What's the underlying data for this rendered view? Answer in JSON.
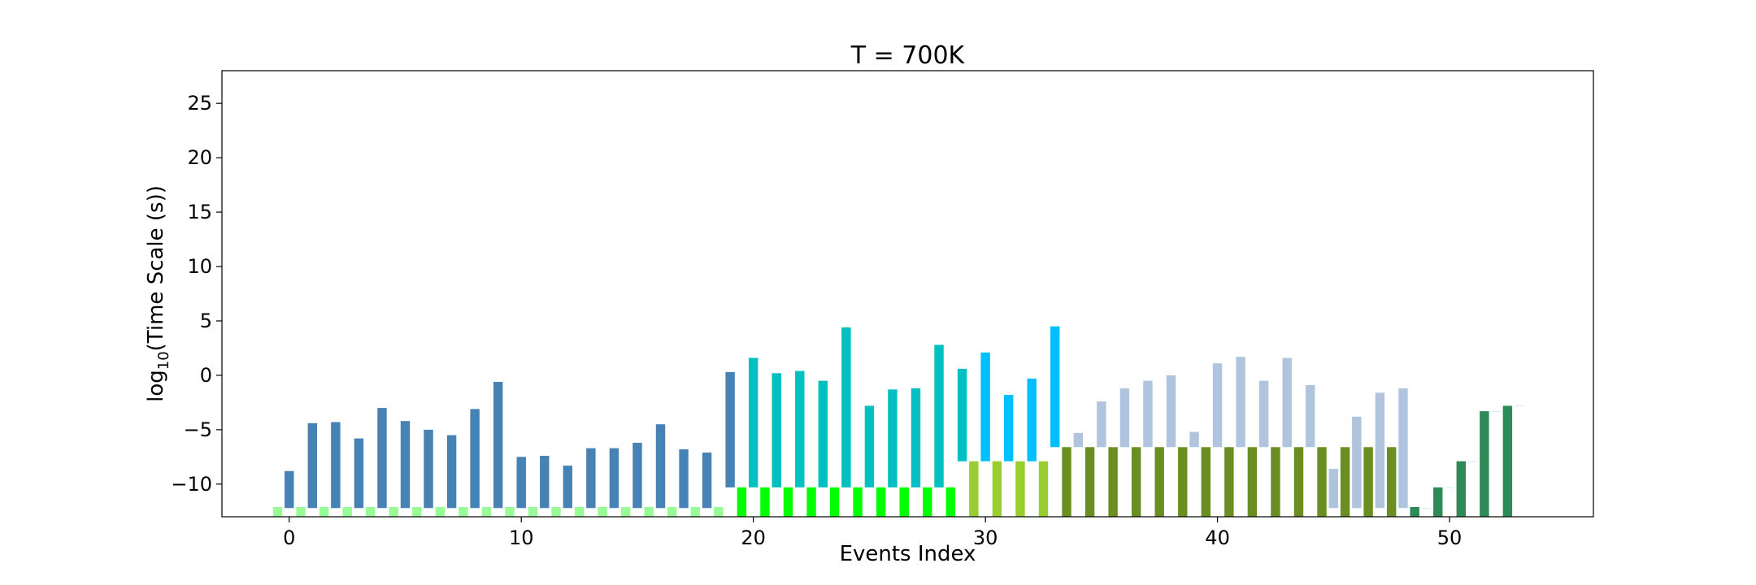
{
  "chart_data": {
    "type": "bar",
    "title": "T = 700K",
    "xlabel": "Events Index",
    "ylabel_main": "log",
    "ylabel_sub": "10",
    "ylabel_rest": "(Time Scale (s))",
    "xlim": [
      -2.9,
      56.2
    ],
    "ylim": [
      -13,
      28
    ],
    "xticks": [
      0,
      10,
      20,
      30,
      40,
      50
    ],
    "yticks": [
      -10,
      -5,
      0,
      5,
      10,
      15,
      20,
      25
    ],
    "grid": false,
    "bar_width": 0.4,
    "bars": [
      {
        "x": 0,
        "lo": -12.2,
        "hi": -8.8,
        "color": "#4682b4"
      },
      {
        "x": 1,
        "lo": -12.2,
        "hi": -4.4,
        "color": "#4682b4"
      },
      {
        "x": 2,
        "lo": -12.2,
        "hi": -4.3,
        "color": "#4682b4"
      },
      {
        "x": 3,
        "lo": -12.2,
        "hi": -5.8,
        "color": "#4682b4"
      },
      {
        "x": 4,
        "lo": -12.2,
        "hi": -3.0,
        "color": "#4682b4"
      },
      {
        "x": 5,
        "lo": -12.2,
        "hi": -4.2,
        "color": "#4682b4"
      },
      {
        "x": 6,
        "lo": -12.2,
        "hi": -5.0,
        "color": "#4682b4"
      },
      {
        "x": 7,
        "lo": -12.2,
        "hi": -5.5,
        "color": "#4682b4"
      },
      {
        "x": 8,
        "lo": -12.2,
        "hi": -3.1,
        "color": "#4682b4"
      },
      {
        "x": 9,
        "lo": -12.2,
        "hi": -0.6,
        "color": "#4682b4"
      },
      {
        "x": 10,
        "lo": -12.2,
        "hi": -7.5,
        "color": "#4682b4"
      },
      {
        "x": 11,
        "lo": -12.2,
        "hi": -7.4,
        "color": "#4682b4"
      },
      {
        "x": 12,
        "lo": -12.2,
        "hi": -8.3,
        "color": "#4682b4"
      },
      {
        "x": 13,
        "lo": -12.2,
        "hi": -6.7,
        "color": "#4682b4"
      },
      {
        "x": 14,
        "lo": -12.2,
        "hi": -6.7,
        "color": "#4682b4"
      },
      {
        "x": 15,
        "lo": -12.2,
        "hi": -6.2,
        "color": "#4682b4"
      },
      {
        "x": 16,
        "lo": -12.2,
        "hi": -4.5,
        "color": "#4682b4"
      },
      {
        "x": 17,
        "lo": -12.2,
        "hi": -6.8,
        "color": "#4682b4"
      },
      {
        "x": 18,
        "lo": -12.2,
        "hi": -7.1,
        "color": "#4682b4"
      },
      {
        "x": 19,
        "lo": -10.3,
        "hi": 0.3,
        "color": "#4682b4"
      },
      {
        "x": 20,
        "lo": -10.3,
        "hi": 1.6,
        "color": "#00c0c0"
      },
      {
        "x": 21,
        "lo": -10.3,
        "hi": 0.2,
        "color": "#00c0c0"
      },
      {
        "x": 22,
        "lo": -10.3,
        "hi": 0.4,
        "color": "#00c0c0"
      },
      {
        "x": 23,
        "lo": -10.3,
        "hi": -0.5,
        "color": "#00c0c0"
      },
      {
        "x": 24,
        "lo": -10.3,
        "hi": 4.4,
        "color": "#00c0c0"
      },
      {
        "x": 25,
        "lo": -10.3,
        "hi": -2.8,
        "color": "#00c0c0"
      },
      {
        "x": 26,
        "lo": -10.3,
        "hi": -1.3,
        "color": "#00c0c0"
      },
      {
        "x": 27,
        "lo": -10.3,
        "hi": -1.2,
        "color": "#00c0c0"
      },
      {
        "x": 28,
        "lo": -10.3,
        "hi": 2.8,
        "color": "#00c0c0"
      },
      {
        "x": 29,
        "lo": -7.9,
        "hi": 0.6,
        "color": "#00c0c0"
      },
      {
        "x": 30,
        "lo": -7.9,
        "hi": 2.1,
        "color": "#00bfff"
      },
      {
        "x": 31,
        "lo": -7.9,
        "hi": -1.8,
        "color": "#00bfff"
      },
      {
        "x": 32,
        "lo": -7.9,
        "hi": -0.3,
        "color": "#00bfff"
      },
      {
        "x": 33,
        "lo": -6.6,
        "hi": 4.5,
        "color": "#00bfff"
      },
      {
        "x": 34,
        "lo": -6.6,
        "hi": -5.3,
        "color": "#b0c4de"
      },
      {
        "x": 35,
        "lo": -6.6,
        "hi": -2.4,
        "color": "#b0c4de"
      },
      {
        "x": 36,
        "lo": -6.6,
        "hi": -1.2,
        "color": "#b0c4de"
      },
      {
        "x": 37,
        "lo": -6.6,
        "hi": -0.5,
        "color": "#b0c4de"
      },
      {
        "x": 38,
        "lo": -6.6,
        "hi": 0.0,
        "color": "#b0c4de"
      },
      {
        "x": 39,
        "lo": -6.6,
        "hi": -5.2,
        "color": "#b0c4de"
      },
      {
        "x": 40,
        "lo": -6.6,
        "hi": 1.1,
        "color": "#b0c4de"
      },
      {
        "x": 41,
        "lo": -6.6,
        "hi": 1.7,
        "color": "#b0c4de"
      },
      {
        "x": 42,
        "lo": -6.6,
        "hi": -0.5,
        "color": "#b0c4de"
      },
      {
        "x": 43,
        "lo": -6.6,
        "hi": 1.6,
        "color": "#b0c4de"
      },
      {
        "x": 44,
        "lo": -6.6,
        "hi": -0.9,
        "color": "#b0c4de"
      },
      {
        "x": 45,
        "lo": -12.2,
        "hi": -8.6,
        "color": "#b0c4de"
      },
      {
        "x": 46,
        "lo": -12.2,
        "hi": -3.8,
        "color": "#b0c4de"
      },
      {
        "x": 47,
        "lo": -12.2,
        "hi": -1.6,
        "color": "#b0c4de"
      },
      {
        "x": 48,
        "lo": -12.2,
        "hi": -1.2,
        "color": "#b0c4de"
      },
      {
        "x": 49,
        "lo": -12.2,
        "hi": -12.2,
        "color": "#b0e0e6"
      },
      {
        "x": 50,
        "lo": -10.3,
        "hi": -10.3,
        "color": "#b0e0e6"
      },
      {
        "x": 51,
        "lo": -7.9,
        "hi": -7.9,
        "color": "#b0e0e6"
      },
      {
        "x": 52,
        "lo": -3.3,
        "hi": -3.3,
        "color": "#b0e0e6"
      },
      {
        "x": 53,
        "lo": -2.8,
        "hi": -2.8,
        "color": "#b0e0e6"
      },
      {
        "x": -0.5,
        "lo": -13,
        "hi": -12.1,
        "color": "#98fb98"
      },
      {
        "x": 0.5,
        "lo": -13,
        "hi": -12.1,
        "color": "#98fb98"
      },
      {
        "x": 1.5,
        "lo": -13,
        "hi": -12.1,
        "color": "#98fb98"
      },
      {
        "x": 2.5,
        "lo": -13,
        "hi": -12.1,
        "color": "#98fb98"
      },
      {
        "x": 3.5,
        "lo": -13,
        "hi": -12.1,
        "color": "#98fb98"
      },
      {
        "x": 4.5,
        "lo": -13,
        "hi": -12.1,
        "color": "#98fb98"
      },
      {
        "x": 5.5,
        "lo": -13,
        "hi": -12.1,
        "color": "#98fb98"
      },
      {
        "x": 6.5,
        "lo": -13,
        "hi": -12.1,
        "color": "#98fb98"
      },
      {
        "x": 7.5,
        "lo": -13,
        "hi": -12.1,
        "color": "#98fb98"
      },
      {
        "x": 8.5,
        "lo": -13,
        "hi": -12.1,
        "color": "#98fb98"
      },
      {
        "x": 9.5,
        "lo": -13,
        "hi": -12.1,
        "color": "#98fb98"
      },
      {
        "x": 10.5,
        "lo": -13,
        "hi": -12.1,
        "color": "#98fb98"
      },
      {
        "x": 11.5,
        "lo": -13,
        "hi": -12.1,
        "color": "#98fb98"
      },
      {
        "x": 12.5,
        "lo": -13,
        "hi": -12.1,
        "color": "#98fb98"
      },
      {
        "x": 13.5,
        "lo": -13,
        "hi": -12.1,
        "color": "#98fb98"
      },
      {
        "x": 14.5,
        "lo": -13,
        "hi": -12.1,
        "color": "#98fb98"
      },
      {
        "x": 15.5,
        "lo": -13,
        "hi": -12.1,
        "color": "#98fb98"
      },
      {
        "x": 16.5,
        "lo": -13,
        "hi": -12.1,
        "color": "#98fb98"
      },
      {
        "x": 17.5,
        "lo": -13,
        "hi": -12.1,
        "color": "#98fb98"
      },
      {
        "x": 18.5,
        "lo": -13,
        "hi": -12.1,
        "color": "#98fb98"
      },
      {
        "x": 19.5,
        "lo": -13,
        "hi": -10.3,
        "color": "#00ff00"
      },
      {
        "x": 20.5,
        "lo": -13,
        "hi": -10.3,
        "color": "#00ff00"
      },
      {
        "x": 21.5,
        "lo": -13,
        "hi": -10.3,
        "color": "#00ff00"
      },
      {
        "x": 22.5,
        "lo": -13,
        "hi": -10.3,
        "color": "#00ff00"
      },
      {
        "x": 23.5,
        "lo": -13,
        "hi": -10.3,
        "color": "#00ff00"
      },
      {
        "x": 24.5,
        "lo": -13,
        "hi": -10.3,
        "color": "#00ff00"
      },
      {
        "x": 25.5,
        "lo": -13,
        "hi": -10.3,
        "color": "#00ff00"
      },
      {
        "x": 26.5,
        "lo": -13,
        "hi": -10.3,
        "color": "#00ff00"
      },
      {
        "x": 27.5,
        "lo": -13,
        "hi": -10.3,
        "color": "#00ff00"
      },
      {
        "x": 28.5,
        "lo": -13,
        "hi": -10.3,
        "color": "#00ff00"
      },
      {
        "x": 29.5,
        "lo": -13,
        "hi": -7.9,
        "color": "#9acd32"
      },
      {
        "x": 30.5,
        "lo": -13,
        "hi": -7.9,
        "color": "#9acd32"
      },
      {
        "x": 31.5,
        "lo": -13,
        "hi": -7.9,
        "color": "#9acd32"
      },
      {
        "x": 32.5,
        "lo": -13,
        "hi": -7.9,
        "color": "#9acd32"
      },
      {
        "x": 33.5,
        "lo": -13,
        "hi": -6.6,
        "color": "#6b8e23"
      },
      {
        "x": 34.5,
        "lo": -13,
        "hi": -6.6,
        "color": "#6b8e23"
      },
      {
        "x": 35.5,
        "lo": -13,
        "hi": -6.6,
        "color": "#6b8e23"
      },
      {
        "x": 36.5,
        "lo": -13,
        "hi": -6.6,
        "color": "#6b8e23"
      },
      {
        "x": 37.5,
        "lo": -13,
        "hi": -6.6,
        "color": "#6b8e23"
      },
      {
        "x": 38.5,
        "lo": -13,
        "hi": -6.6,
        "color": "#6b8e23"
      },
      {
        "x": 39.5,
        "lo": -13,
        "hi": -6.6,
        "color": "#6b8e23"
      },
      {
        "x": 40.5,
        "lo": -13,
        "hi": -6.6,
        "color": "#6b8e23"
      },
      {
        "x": 41.5,
        "lo": -13,
        "hi": -6.6,
        "color": "#6b8e23"
      },
      {
        "x": 42.5,
        "lo": -13,
        "hi": -6.6,
        "color": "#6b8e23"
      },
      {
        "x": 43.5,
        "lo": -13,
        "hi": -6.6,
        "color": "#6b8e23"
      },
      {
        "x": 44.5,
        "lo": -13,
        "hi": -6.6,
        "color": "#6b8e23"
      },
      {
        "x": 45.5,
        "lo": -13,
        "hi": -6.6,
        "color": "#6b8e23"
      },
      {
        "x": 46.5,
        "lo": -13,
        "hi": -6.6,
        "color": "#6b8e23"
      },
      {
        "x": 47.5,
        "lo": -13,
        "hi": -6.6,
        "color": "#6b8e23"
      },
      {
        "x": 48.5,
        "lo": -13,
        "hi": -12.1,
        "color": "#2e8b57"
      },
      {
        "x": 49.5,
        "lo": -13,
        "hi": -10.3,
        "color": "#2e8b57"
      },
      {
        "x": 50.5,
        "lo": -13,
        "hi": -7.9,
        "color": "#2e8b57"
      },
      {
        "x": 51.5,
        "lo": -13,
        "hi": -3.3,
        "color": "#2e8b57"
      },
      {
        "x": 52.5,
        "lo": -13,
        "hi": -2.8,
        "color": "#2e8b57"
      }
    ]
  }
}
